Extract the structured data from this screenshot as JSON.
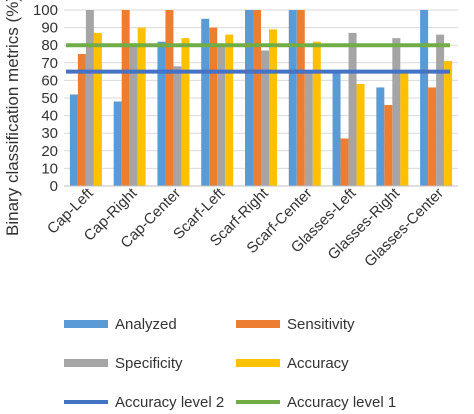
{
  "chart_data": {
    "type": "bar",
    "title": "",
    "xlabel": "",
    "ylabel": "Binary classification metrics (%)",
    "ylim": [
      0,
      100
    ],
    "yticks": [
      0,
      10,
      20,
      30,
      40,
      50,
      60,
      70,
      80,
      90,
      100
    ],
    "grid": "horizontal",
    "legend_position": "bottom",
    "categories": [
      "Cap-Left",
      "Cap-Right",
      "Cap-Center",
      "Scarf-Left",
      "Scarf-Right",
      "Scarf-Center",
      "Glasses-Left",
      "Glasses-Right",
      "Glasses-Center"
    ],
    "series": [
      {
        "name": "Analyzed",
        "color": "#5B9BD5",
        "values": [
          52,
          48,
          82,
          95,
          100,
          100,
          65,
          56,
          100
        ]
      },
      {
        "name": "Sensitivity",
        "color": "#ED7D31",
        "values": [
          75,
          100,
          100,
          90,
          100,
          100,
          27,
          46,
          56
        ]
      },
      {
        "name": "Specificity",
        "color": "#A5A5A5",
        "values": [
          100,
          81,
          68,
          81,
          77,
          65,
          87,
          84,
          86
        ]
      },
      {
        "name": "Accuracy",
        "color": "#FFC000",
        "values": [
          87,
          90,
          84,
          86,
          89,
          82,
          58,
          64,
          71
        ]
      }
    ],
    "reference_lines": [
      {
        "name": "Accuracy level 2",
        "color": "#4472C4",
        "value": 65
      },
      {
        "name": "Accuracy level 1",
        "color": "#70AD47",
        "value": 80
      }
    ]
  }
}
